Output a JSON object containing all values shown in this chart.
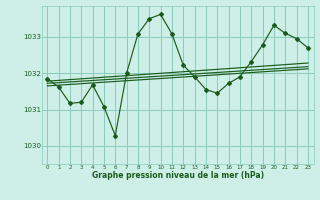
{
  "bg_color": "#ceeee8",
  "grid_color": "#88ccbb",
  "line_color": "#1a5c1a",
  "xlabel": "Graphe pression niveau de la mer (hPa)",
  "ylim": [
    1029.5,
    1033.85
  ],
  "xlim": [
    -0.5,
    23.5
  ],
  "yticks": [
    1030,
    1031,
    1032,
    1033
  ],
  "xticks": [
    0,
    1,
    2,
    3,
    4,
    5,
    6,
    7,
    8,
    9,
    10,
    11,
    12,
    13,
    14,
    15,
    16,
    17,
    18,
    19,
    20,
    21,
    22,
    23
  ],
  "main_y": [
    1031.85,
    1031.62,
    1031.17,
    1031.2,
    1031.68,
    1031.08,
    1030.28,
    1032.0,
    1033.08,
    1033.5,
    1033.62,
    1033.08,
    1032.22,
    1031.9,
    1031.55,
    1031.45,
    1031.72,
    1031.9,
    1032.32,
    1032.78,
    1033.32,
    1033.1,
    1032.95,
    1032.7
  ],
  "trend_lines": [
    [
      1031.78,
      1032.28
    ],
    [
      1031.72,
      1032.18
    ],
    [
      1031.65,
      1032.12
    ]
  ]
}
